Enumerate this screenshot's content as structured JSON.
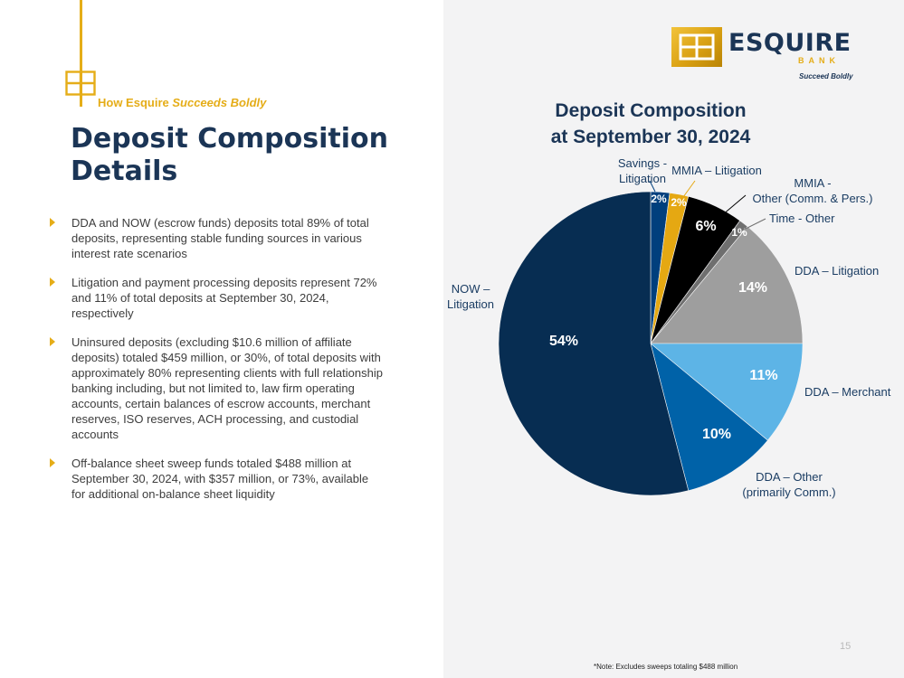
{
  "tagline": {
    "part1": "How Esquire ",
    "part2": "Succeeds Boldly"
  },
  "title": {
    "line1": "Deposit Composition",
    "line2": "Details"
  },
  "bullets": [
    "DDA and NOW (escrow funds) deposits total 89% of total deposits, representing stable funding sources in various interest rate scenarios",
    "Litigation and payment processing deposits represent 72% and 11% of total deposits at September 30, 2024, respectively",
    "Uninsured deposits (excluding $10.6 million of affiliate deposits) totaled $459 million, or 30%, of total deposits with approximately 80% representing clients with full relationship banking including, but not limited to, law firm operating accounts, certain balances of escrow accounts, merchant reserves, ISO reserves, ACH processing, and custodial accounts",
    "Off-balance sheet sweep funds totaled $488 million at September 30, 2024, with $357 million, or 73%, available for additional on-balance sheet liquidity"
  ],
  "logo": {
    "name": "ESQUIRE",
    "bank": "BANK",
    "slogan": "Succeed Boldly"
  },
  "colors": {
    "navy": "#1b3556",
    "gold": "#e5ad18"
  },
  "chart_data": {
    "type": "pie",
    "title": "Deposit Composition at September 30, 2024",
    "title_lines": [
      "Deposit Composition",
      "at September 30, 2024"
    ],
    "slices": [
      {
        "name": "Savings - Litigation",
        "label_lines": [
          "Savings -",
          "Litigation"
        ],
        "value": 2,
        "label": "2%",
        "color": "#003f7d"
      },
      {
        "name": "MMIA – Litigation",
        "label_lines": [
          "MMIA – Litigation"
        ],
        "value": 2,
        "label": "2%",
        "color": "#e5a812"
      },
      {
        "name": "MMIA - Other (Comm. & Pers.)",
        "label_lines": [
          "MMIA -",
          "Other (Comm. & Pers.)"
        ],
        "value": 6,
        "label": "6%",
        "color": "#000000"
      },
      {
        "name": "Time - Other",
        "label_lines": [
          "Time - Other"
        ],
        "value": 1,
        "label": "1%",
        "color": "#6f6f6f"
      },
      {
        "name": "DDA – Litigation",
        "label_lines": [
          "DDA – Litigation"
        ],
        "value": 14,
        "label": "14%",
        "color": "#9e9e9e"
      },
      {
        "name": "DDA – Merchant",
        "label_lines": [
          "DDA – Merchant"
        ],
        "value": 11,
        "label": "11%",
        "color": "#5db4e6"
      },
      {
        "name": "DDA – Other (primarily Comm.)",
        "label_lines": [
          "DDA – Other",
          "(primarily Comm.)"
        ],
        "value": 10,
        "label": "10%",
        "color": "#0062a8"
      },
      {
        "name": "NOW – Litigation",
        "label_lines": [
          "NOW –",
          "Litigation"
        ],
        "value": 54,
        "label": "54%",
        "color": "#072d52"
      }
    ]
  },
  "page_number": "15",
  "footnote": "*Note: Excludes sweeps totaling $488 million"
}
